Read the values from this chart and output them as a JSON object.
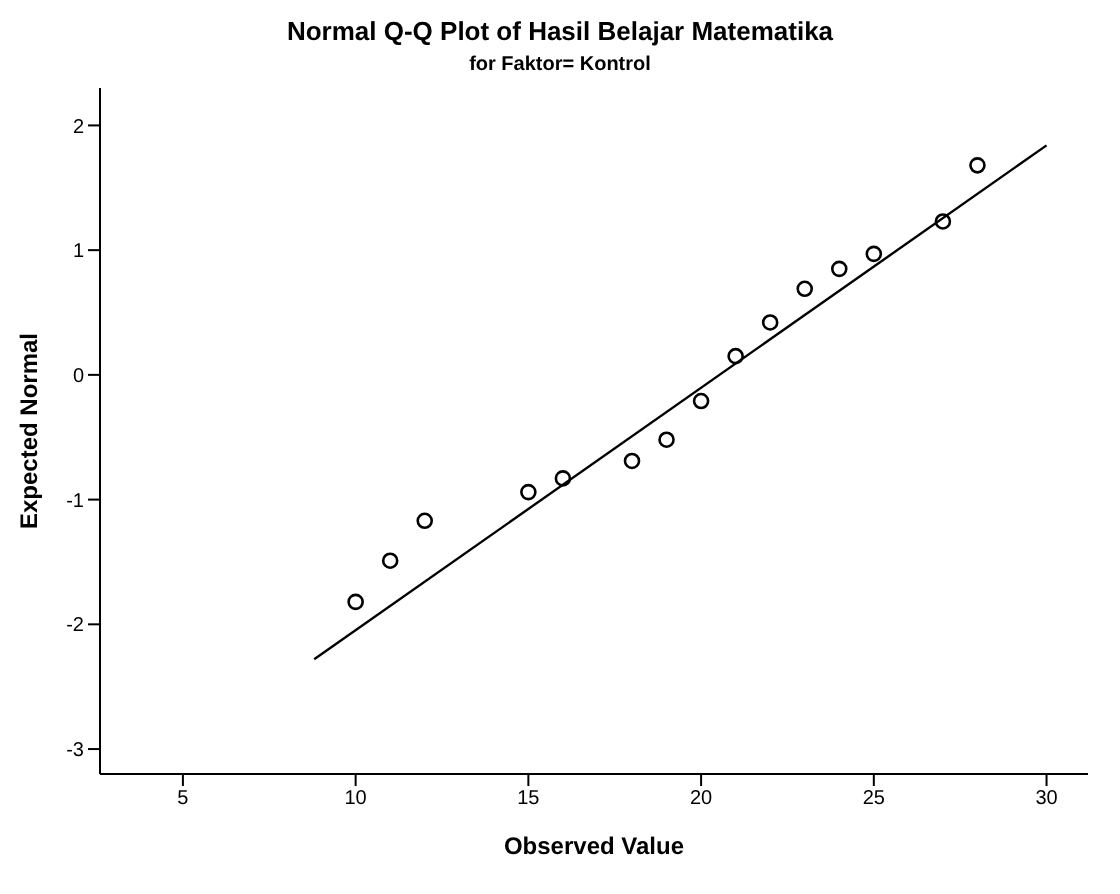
{
  "chart_data": {
    "type": "scatter",
    "title": "Normal Q-Q Plot of Hasil Belajar Matematika",
    "subtitle": "for Faktor= Kontrol",
    "xlabel": "Observed Value",
    "ylabel": "Expected Normal",
    "xlim": [
      2.6,
      31.2
    ],
    "xticks": [
      5,
      10,
      15,
      20,
      25,
      30
    ],
    "ylim": [
      -3.2,
      2.3
    ],
    "yticks": [
      2,
      1,
      0,
      -1,
      -2,
      -3
    ],
    "grid": false,
    "marker": "circle",
    "series": [
      {
        "color": "#000000",
        "x": [
          10,
          11,
          12,
          15,
          16,
          18,
          19,
          20,
          21,
          22,
          23,
          24,
          25,
          27,
          28
        ],
        "values": [
          -1.82,
          -1.49,
          -1.17,
          -0.94,
          -0.83,
          -0.69,
          -0.52,
          -0.21,
          0.15,
          0.42,
          0.69,
          0.85,
          0.97,
          1.23,
          1.68
        ]
      },
      {
        "type": "line",
        "color": "#000000",
        "marker": "none",
        "x": [
          8.8,
          30
        ],
        "values": [
          -2.28,
          1.84
        ]
      }
    ]
  }
}
